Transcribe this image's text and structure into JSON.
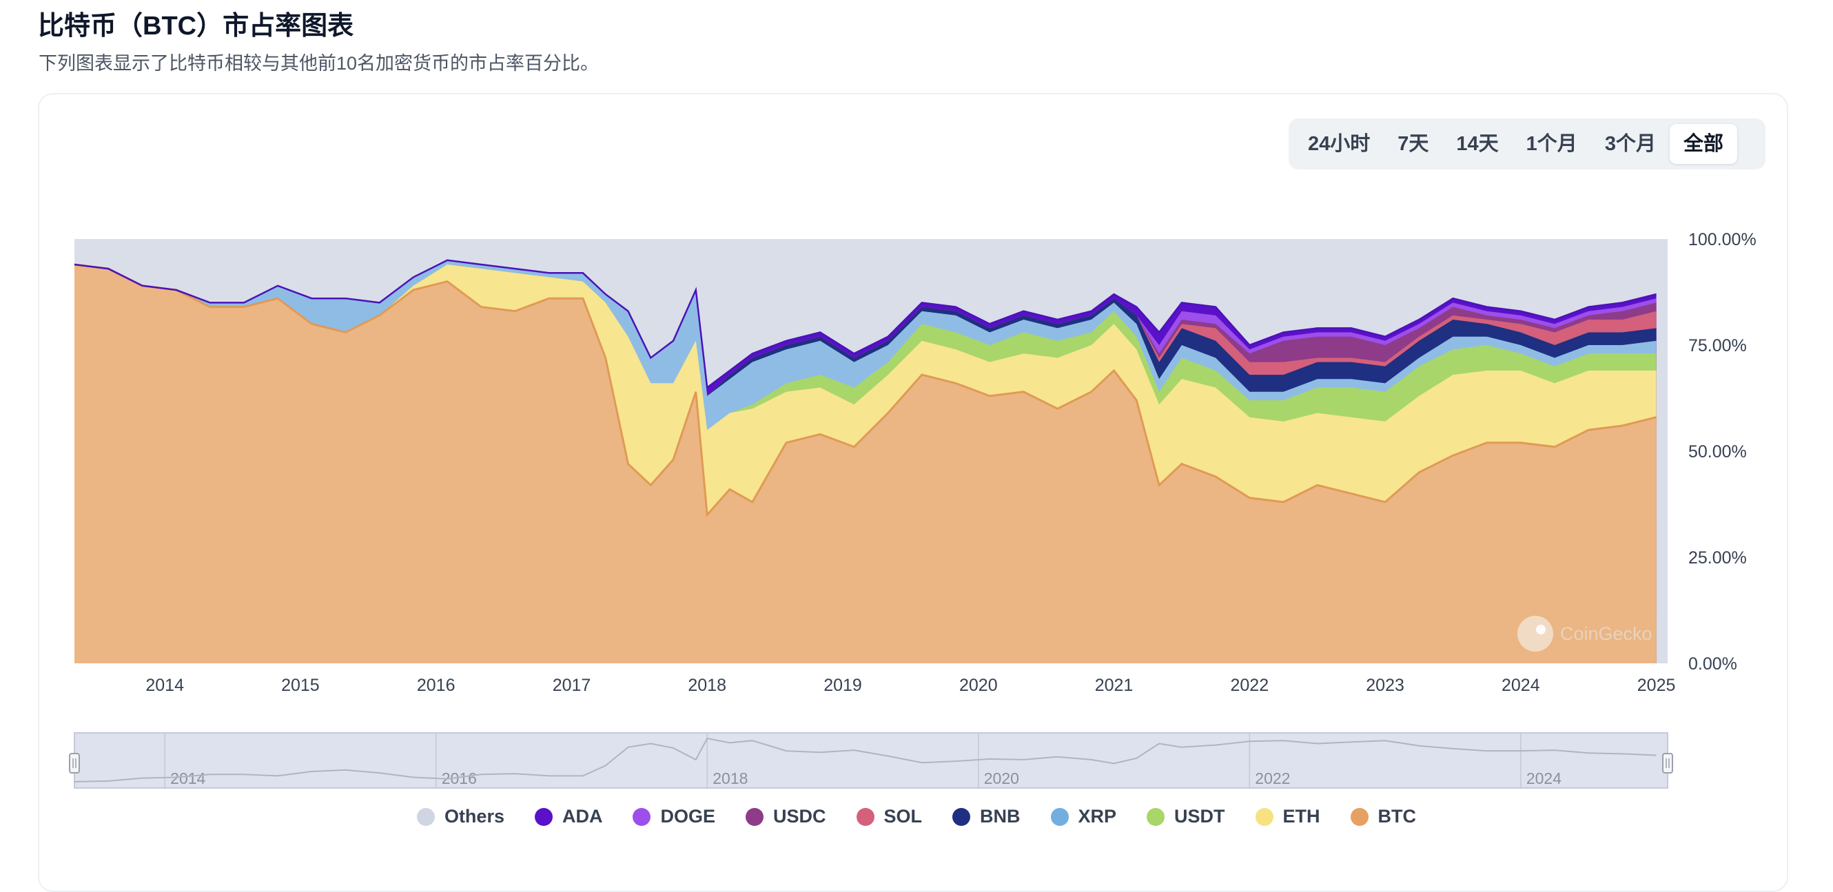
{
  "header": {
    "title": "比特币（BTC）市占率图表",
    "subtitle": "下列图表显示了比特币相较与其他前10名加密货币的市占率百分比。"
  },
  "range_tabs": [
    "24小时",
    "7天",
    "14天",
    "1个月",
    "3个月",
    "全部"
  ],
  "active_tab": "全部",
  "watermark": "CoinGecko",
  "colors": {
    "Others": "#d9dee9",
    "ADA": "#5b10c9",
    "DOGE": "#9c4fea",
    "USDC": "#8e3b8a",
    "SOL": "#d4607b",
    "BNB": "#1f2f82",
    "XRP": "#8fbce4",
    "USDT": "#a8d66a",
    "ETH": "#f8e58f",
    "BTC": "#ebb684",
    "BTC_line": "#e09a56"
  },
  "chart_data": {
    "type": "area",
    "stacked": true,
    "title": "",
    "xlabel": "",
    "ylabel": "",
    "ylim": [
      0,
      100
    ],
    "y_ticks": [
      "0.00%",
      "25.00%",
      "50.00%",
      "75.00%",
      "100.00%"
    ],
    "x_ticks": [
      "2014",
      "2015",
      "2016",
      "2017",
      "2018",
      "2019",
      "2020",
      "2021",
      "2022",
      "2023",
      "2024",
      "2025"
    ],
    "navigator_ticks": [
      "2014",
      "2016",
      "2018",
      "2020",
      "2022",
      "2024"
    ],
    "legend": [
      "Others",
      "ADA",
      "DOGE",
      "USDC",
      "SOL",
      "BNB",
      "XRP",
      "USDT",
      "ETH",
      "BTC"
    ],
    "legend_position": "bottom",
    "x_range": [
      "2013-05",
      "2025-02"
    ],
    "x": [
      "2013-05",
      "2013-08",
      "2013-11",
      "2014-02",
      "2014-05",
      "2014-08",
      "2014-11",
      "2015-02",
      "2015-05",
      "2015-08",
      "2015-11",
      "2016-02",
      "2016-05",
      "2016-08",
      "2016-11",
      "2017-02",
      "2017-04",
      "2017-06",
      "2017-08",
      "2017-10",
      "2017-12",
      "2018-01",
      "2018-03",
      "2018-05",
      "2018-08",
      "2018-11",
      "2019-02",
      "2019-05",
      "2019-08",
      "2019-11",
      "2020-02",
      "2020-05",
      "2020-08",
      "2020-11",
      "2021-01",
      "2021-03",
      "2021-05",
      "2021-07",
      "2021-10",
      "2022-01",
      "2022-04",
      "2022-07",
      "2022-10",
      "2023-01",
      "2023-04",
      "2023-07",
      "2023-10",
      "2024-01",
      "2024-04",
      "2024-07",
      "2024-10",
      "2025-01"
    ],
    "series": [
      {
        "name": "BTC",
        "values": [
          94,
          93,
          89,
          88,
          84,
          84,
          86,
          80,
          78,
          82,
          88,
          90,
          84,
          83,
          86,
          86,
          72,
          47,
          42,
          48,
          64,
          35,
          41,
          38,
          52,
          54,
          51,
          59,
          68,
          66,
          63,
          64,
          60,
          64,
          69,
          62,
          42,
          47,
          44,
          39,
          38,
          42,
          40,
          38,
          45,
          49,
          52,
          52,
          51,
          55,
          56,
          58
        ]
      },
      {
        "name": "ETH",
        "values": [
          0,
          0,
          0,
          0,
          0,
          0,
          0,
          0,
          0,
          0,
          1,
          4,
          9,
          9,
          5,
          4,
          13,
          30,
          24,
          18,
          12,
          20,
          18,
          22,
          12,
          11,
          10,
          9,
          8,
          8,
          8,
          9,
          12,
          11,
          11,
          12,
          19,
          20,
          21,
          19,
          19,
          17,
          18,
          19,
          18,
          19,
          17,
          17,
          15,
          14,
          13,
          11
        ]
      },
      {
        "name": "USDT",
        "values": [
          0,
          0,
          0,
          0,
          0,
          0,
          0,
          0,
          0,
          0,
          0,
          0,
          0,
          0,
          0,
          0,
          0,
          0,
          0,
          0,
          0,
          0,
          0,
          1,
          2,
          3,
          4,
          3,
          4,
          4,
          4,
          5,
          4,
          3,
          3,
          3,
          3,
          5,
          4,
          4,
          5,
          6,
          7,
          7,
          7,
          6,
          6,
          4,
          4,
          4,
          4,
          4
        ]
      },
      {
        "name": "XRP",
        "values": [
          0,
          0,
          0,
          0,
          1,
          1,
          3,
          6,
          8,
          3,
          2,
          1,
          1,
          1,
          1,
          2,
          2,
          6,
          6,
          10,
          12,
          8,
          8,
          10,
          8,
          8,
          6,
          4,
          3,
          4,
          3,
          3,
          3,
          3,
          2,
          3,
          3,
          3,
          3,
          2,
          2,
          2,
          2,
          2,
          2,
          3,
          2,
          2,
          2,
          2,
          2,
          3
        ]
      },
      {
        "name": "BNB",
        "values": [
          0,
          0,
          0,
          0,
          0,
          0,
          0,
          0,
          0,
          0,
          0,
          0,
          0,
          0,
          0,
          0,
          0,
          0,
          0,
          0,
          0,
          0,
          1,
          1,
          1,
          1,
          1,
          1,
          1,
          1,
          1,
          1,
          1,
          1,
          1,
          2,
          4,
          4,
          4,
          4,
          4,
          4,
          4,
          4,
          4,
          4,
          3,
          3,
          3,
          3,
          3,
          3
        ]
      },
      {
        "name": "SOL",
        "values": [
          0,
          0,
          0,
          0,
          0,
          0,
          0,
          0,
          0,
          0,
          0,
          0,
          0,
          0,
          0,
          0,
          0,
          0,
          0,
          0,
          0,
          0,
          0,
          0,
          0,
          0,
          0,
          0,
          0,
          0,
          0,
          0,
          0,
          0,
          0,
          0,
          1,
          1,
          3,
          3,
          3,
          1,
          1,
          1,
          1,
          1,
          1,
          2,
          3,
          3,
          3,
          4
        ]
      },
      {
        "name": "USDC",
        "values": [
          0,
          0,
          0,
          0,
          0,
          0,
          0,
          0,
          0,
          0,
          0,
          0,
          0,
          0,
          0,
          0,
          0,
          0,
          0,
          0,
          0,
          0,
          0,
          0,
          0,
          0,
          0,
          0,
          0,
          0,
          0,
          0,
          0,
          0,
          0,
          0,
          1,
          1,
          1,
          2,
          5,
          5,
          5,
          4,
          2,
          2,
          1,
          1,
          1,
          1,
          2,
          2
        ]
      },
      {
        "name": "DOGE",
        "values": [
          0,
          0,
          0,
          0,
          0,
          0,
          0,
          0,
          0,
          0,
          0,
          0,
          0,
          0,
          0,
          0,
          0,
          0,
          0,
          0,
          0,
          0,
          0,
          0,
          0,
          0,
          0,
          0,
          0,
          0,
          0,
          0,
          0,
          0,
          0,
          0,
          2,
          2,
          2,
          1,
          1,
          1,
          1,
          1,
          1,
          1,
          1,
          1,
          1,
          1,
          1,
          1
        ]
      },
      {
        "name": "ADA",
        "values": [
          0,
          0,
          0,
          0,
          0,
          0,
          0,
          0,
          0,
          0,
          0,
          0,
          0,
          0,
          0,
          0,
          0,
          0,
          0,
          0,
          0,
          2,
          1,
          1,
          1,
          1,
          1,
          1,
          1,
          1,
          1,
          1,
          1,
          1,
          1,
          2,
          3,
          2,
          2,
          1,
          1,
          1,
          1,
          1,
          1,
          1,
          1,
          1,
          1,
          1,
          1,
          1
        ]
      },
      {
        "name": "Others",
        "values": [
          6,
          7,
          11,
          12,
          15,
          15,
          11,
          14,
          14,
          15,
          9,
          5,
          6,
          7,
          8,
          8,
          13,
          17,
          28,
          24,
          12,
          35,
          31,
          27,
          24,
          22,
          27,
          23,
          15,
          16,
          20,
          17,
          19,
          18,
          12,
          16,
          24,
          15,
          16,
          25,
          22,
          21,
          21,
          23,
          20,
          14,
          17,
          17,
          19,
          16,
          15,
          13
        ]
      }
    ]
  }
}
